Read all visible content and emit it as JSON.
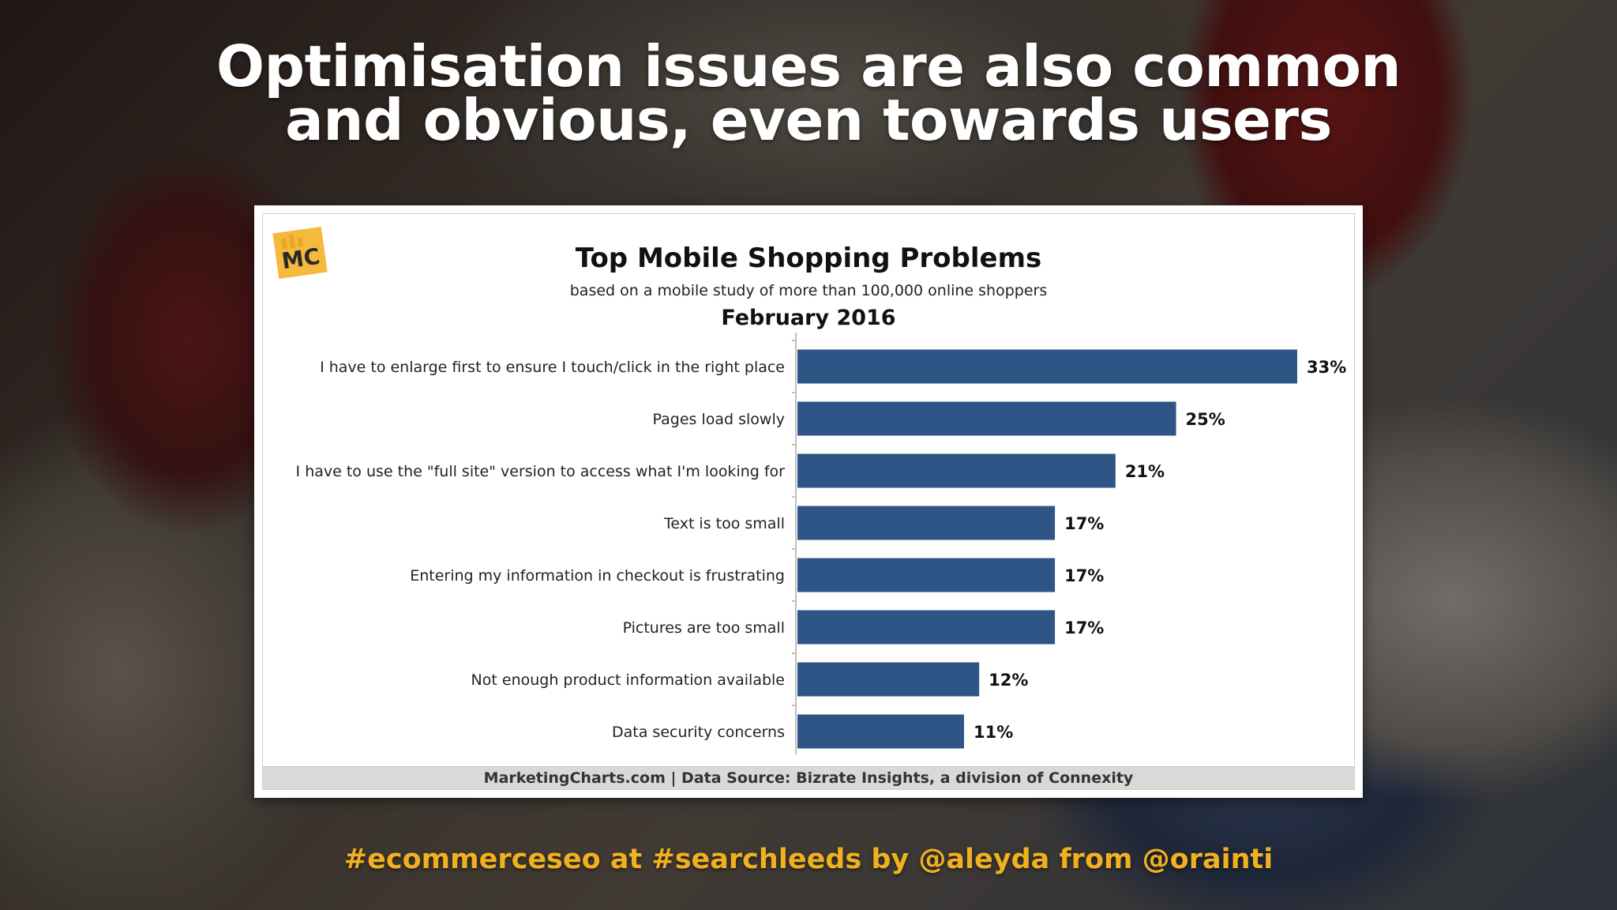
{
  "slide": {
    "title_line1": "Optimisation issues are also common",
    "title_line2": "and obvious, even towards users",
    "footer_hashtag": "#ecommerceseo at #searchleeds by @aleyda from @orainti"
  },
  "logo": {
    "text": "MC",
    "color": "#f5b93b"
  },
  "source_note": "MarketingCharts.com | Data Source: Bizrate Insights, a division of Connexity",
  "colors": {
    "bar": "#2f5486",
    "accent": "#f0b020"
  },
  "chart_data": {
    "type": "bar",
    "orientation": "horizontal",
    "title": "Top Mobile Shopping Problems",
    "subtitle": "based on a mobile study of more than 100,000 online shoppers",
    "date": "February 2016",
    "categories": [
      "I have to enlarge first to ensure I touch/click in the right place",
      "Pages load slowly",
      "I have to use the \"full site\" version to access what I'm looking for",
      "Text is too small",
      "Entering my information in checkout is frustrating",
      "Pictures are too small",
      "Not enough product information available",
      "Data security concerns"
    ],
    "values": [
      33,
      25,
      21,
      17,
      17,
      17,
      12,
      11
    ],
    "value_labels": [
      "33%",
      "25%",
      "21%",
      "17%",
      "17%",
      "17%",
      "12%",
      "11%"
    ],
    "unit": "%",
    "xlim": [
      0,
      35
    ],
    "grid": false,
    "legend": "none"
  }
}
